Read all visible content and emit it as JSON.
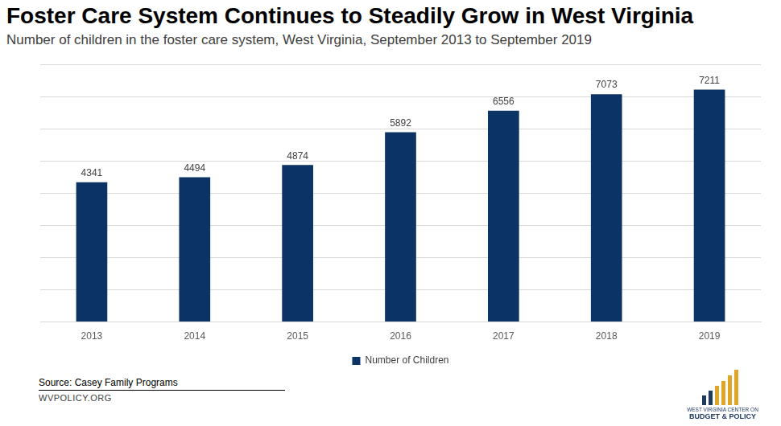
{
  "chart_data": {
    "type": "bar",
    "title": "Foster Care System Continues to Steadily Grow in West Virginia",
    "subtitle": "Number of children in the foster care system, West Virginia, September 2013 to September 2019",
    "categories": [
      "2013",
      "2014",
      "2015",
      "2016",
      "2017",
      "2018",
      "2019"
    ],
    "series": [
      {
        "name": "Number of Children",
        "color": "#0b3364",
        "values": [
          4341,
          4494,
          4874,
          5892,
          6556,
          7073,
          7211
        ]
      }
    ],
    "ylim": [
      0,
      8000
    ],
    "yticks": [
      0,
      1000,
      2000,
      3000,
      4000,
      5000,
      6000,
      7000,
      8000
    ],
    "grid": true,
    "legend": "bottom",
    "data_labels": true,
    "tick_labels": "x",
    "source": "Source: Casey Family Programs",
    "annotations": [
      "WVPOLICY.ORG",
      "WEST VIRGINIA CENTER ON",
      "BUDGET & POLICY"
    ]
  }
}
